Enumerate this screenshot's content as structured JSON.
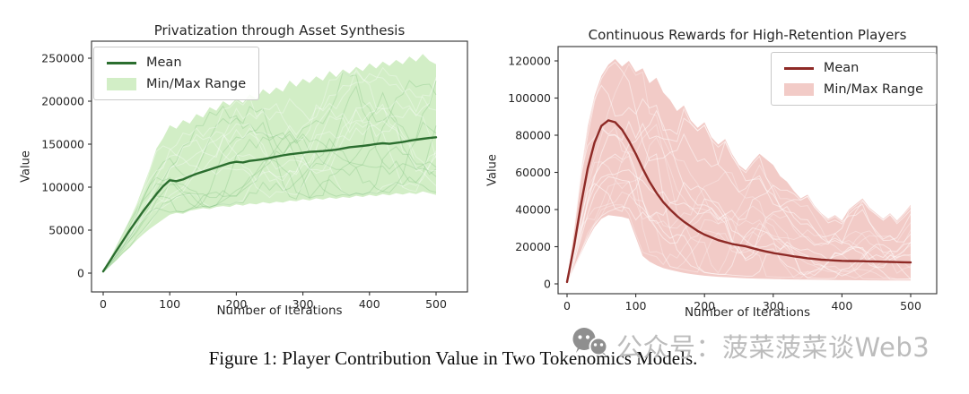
{
  "figure": {
    "caption": "Figure 1: Player Contribution Value in Two Tokenomics Models."
  },
  "watermark": {
    "icon": "wechat-icon",
    "text": "公众号：菠菜菠菜谈Web3",
    "color": "#bcbcbc",
    "icon_color": "#8f8f8f"
  },
  "chart_data": [
    {
      "type": "line",
      "title": "Privatization through Asset Synthesis",
      "xlabel": "Number of Iterations",
      "ylabel": "Value",
      "xlim": [
        0,
        500
      ],
      "ylim": [
        0,
        250000
      ],
      "xticks": [
        0,
        100,
        200,
        300,
        400,
        500
      ],
      "yticks": [
        0,
        50000,
        100000,
        150000,
        200000,
        250000
      ],
      "grid": false,
      "legend_position": "upper-left",
      "legend": [
        {
          "label": "Mean",
          "type": "line"
        },
        {
          "label": "Min/Max Range",
          "type": "patch"
        }
      ],
      "colors": {
        "mean": "#2b6e2f",
        "band": "#d2eec6",
        "runs": "rgba(255,255,255,0.35)",
        "runs2": "rgba(120,190,120,0.30)"
      },
      "x": [
        0,
        10,
        20,
        30,
        40,
        50,
        60,
        70,
        80,
        90,
        100,
        110,
        120,
        130,
        140,
        150,
        160,
        170,
        180,
        190,
        200,
        210,
        220,
        230,
        240,
        250,
        260,
        270,
        280,
        290,
        300,
        310,
        320,
        330,
        340,
        350,
        360,
        370,
        380,
        390,
        400,
        410,
        420,
        430,
        440,
        450,
        460,
        470,
        480,
        490,
        500
      ],
      "series": {
        "mean": [
          2000,
          14000,
          26000,
          38000,
          50000,
          61000,
          72000,
          82000,
          92000,
          101000,
          108000,
          107000,
          109000,
          112500,
          115500,
          118000,
          120500,
          123000,
          125500,
          128000,
          129500,
          128800,
          130500,
          131500,
          132500,
          134000,
          135500,
          137000,
          138200,
          139200,
          140000,
          141000,
          141500,
          142000,
          142800,
          143500,
          145000,
          146500,
          147200,
          148000,
          149000,
          150200,
          151000,
          150400,
          151500,
          152500,
          154000,
          155200,
          156200,
          157200,
          158000
        ],
        "max": [
          3000,
          17000,
          32000,
          47000,
          63000,
          80000,
          100000,
          121000,
          145000,
          157000,
          172000,
          168000,
          178000,
          174000,
          185000,
          181000,
          193000,
          189000,
          200000,
          195000,
          203000,
          198000,
          208000,
          203000,
          214000,
          208000,
          216000,
          211000,
          224000,
          217000,
          226000,
          221000,
          229000,
          224000,
          235000,
          228000,
          237000,
          232000,
          240000,
          235000,
          244000,
          238000,
          246000,
          241000,
          248000,
          243000,
          252000,
          246000,
          255000,
          247000,
          243000
        ],
        "min": [
          1000,
          8000,
          15000,
          23000,
          30000,
          38000,
          45000,
          51500,
          57000,
          62500,
          68000,
          70000,
          69000,
          72500,
          74000,
          75500,
          74500,
          77000,
          78000,
          77000,
          80000,
          78500,
          81000,
          80000,
          82500,
          81000,
          83000,
          82000,
          84500,
          83500,
          86000,
          84500,
          87000,
          85500,
          88000,
          86500,
          88500,
          87500,
          90000,
          88500,
          91000,
          89500,
          92000,
          90500,
          93000,
          91500,
          93500,
          92000,
          95000,
          93000,
          91000
        ]
      }
    },
    {
      "type": "line",
      "title": "Continuous Rewards for High-Retention Players",
      "xlabel": "Number of Iterations",
      "ylabel": "Value",
      "xlim": [
        0,
        500
      ],
      "ylim": [
        0,
        120000
      ],
      "xticks": [
        0,
        100,
        200,
        300,
        400,
        500
      ],
      "yticks": [
        0,
        20000,
        40000,
        60000,
        80000,
        100000,
        120000
      ],
      "grid": false,
      "legend_position": "upper-right",
      "legend": [
        {
          "label": "Mean",
          "type": "line"
        },
        {
          "label": "Min/Max Range",
          "type": "patch"
        }
      ],
      "colors": {
        "mean": "#8e2a26",
        "band": "#f2cbc7",
        "runs": "rgba(255,255,255,0.50)",
        "runs2": "rgba(255,255,255,0.30)"
      },
      "x": [
        0,
        10,
        20,
        30,
        40,
        50,
        60,
        70,
        80,
        90,
        100,
        110,
        120,
        130,
        140,
        150,
        160,
        170,
        180,
        190,
        200,
        210,
        220,
        230,
        240,
        250,
        260,
        270,
        280,
        290,
        300,
        310,
        320,
        330,
        340,
        350,
        360,
        370,
        380,
        390,
        400,
        410,
        420,
        430,
        440,
        450,
        460,
        470,
        480,
        490,
        500
      ],
      "series": {
        "mean": [
          1000,
          20000,
          42000,
          62000,
          76000,
          85000,
          88000,
          87000,
          83000,
          77000,
          70000,
          62000,
          55000,
          49000,
          44000,
          40000,
          36500,
          33500,
          31000,
          28500,
          26500,
          25000,
          23500,
          22500,
          21500,
          20800,
          20200,
          19200,
          18200,
          17400,
          16600,
          16000,
          15400,
          14800,
          14300,
          13800,
          13400,
          13000,
          12800,
          12600,
          12400,
          12300,
          12250,
          12200,
          12100,
          12000,
          11900,
          11800,
          11700,
          11600,
          11500
        ],
        "max": [
          2000,
          30000,
          60000,
          85000,
          101000,
          112000,
          118000,
          121000,
          117000,
          120000,
          114000,
          116000,
          108000,
          111000,
          103000,
          99000,
          93000,
          96000,
          88000,
          84000,
          87000,
          79000,
          75000,
          78000,
          70000,
          64000,
          61000,
          66000,
          70000,
          67000,
          64000,
          58000,
          55000,
          50000,
          46000,
          48000,
          42000,
          38000,
          35000,
          37000,
          34000,
          40000,
          43000,
          46000,
          41000,
          38000,
          35000,
          38000,
          34000,
          38000,
          42500
        ],
        "min": [
          500,
          8000,
          16000,
          24000,
          30500,
          35000,
          37000,
          36500,
          36000,
          35000,
          25000,
          15000,
          12000,
          10000,
          8500,
          7500,
          6700,
          5900,
          5300,
          4800,
          4400,
          4100,
          3800,
          3600,
          3400,
          3200,
          3000,
          2900,
          2800,
          2700,
          2600,
          2500,
          2400,
          2350,
          2300,
          2250,
          2200,
          2150,
          2100,
          2050,
          2000,
          2000,
          1950,
          1950,
          1900,
          1900,
          1850,
          1850,
          1800,
          1800,
          1800
        ]
      }
    }
  ]
}
